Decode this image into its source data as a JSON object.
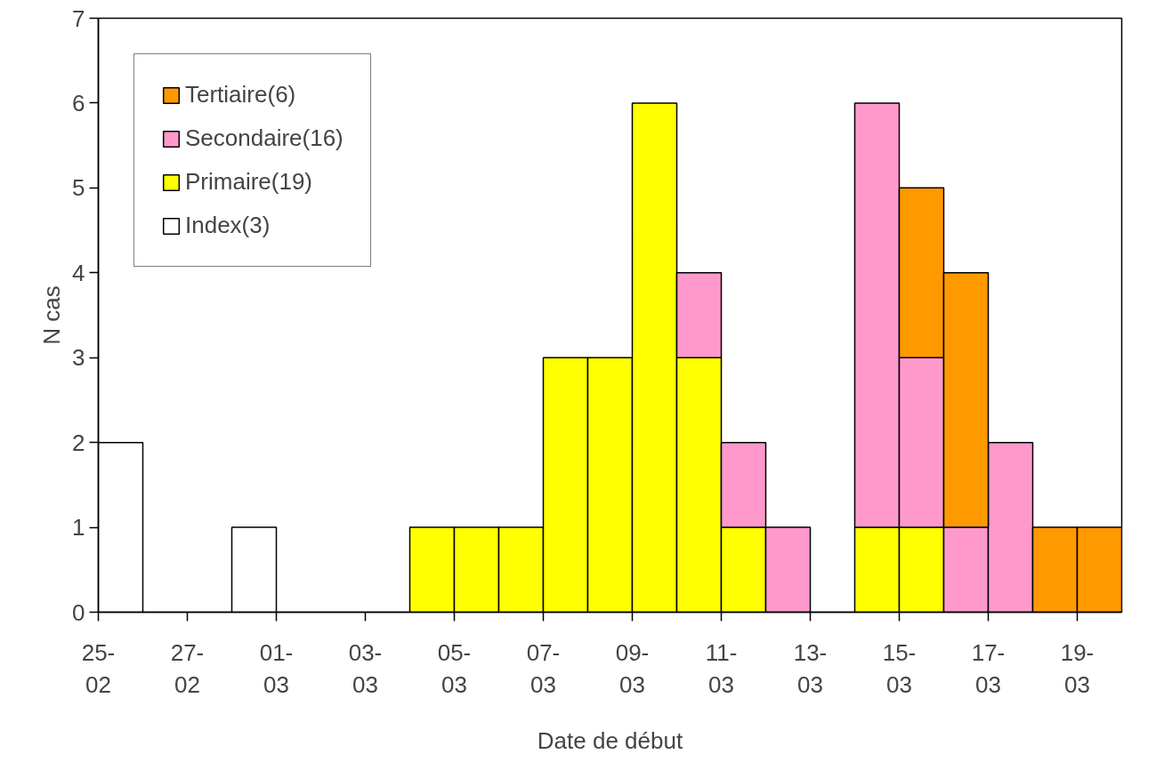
{
  "chart_data": {
    "type": "bar",
    "stacked": true,
    "xlabel": "Date de début",
    "ylabel": "N cas",
    "categories": [
      "25-02",
      null,
      "27-02",
      null,
      "01-03",
      null,
      "03-03",
      null,
      "05-03",
      null,
      "07-03",
      null,
      "09-03",
      null,
      "11-03",
      null,
      "13-03",
      null,
      "15-03",
      null,
      "17-03",
      null,
      "19-03"
    ],
    "series": [
      {
        "name": "Index(3)",
        "color": "#ffffff",
        "values": [
          2,
          null,
          null,
          1,
          null,
          null,
          null,
          null,
          null,
          null,
          null,
          null,
          null,
          null,
          null,
          null,
          null,
          null,
          null,
          null,
          null,
          null,
          null
        ]
      },
      {
        "name": "Primaire(19)",
        "color": "#ffff00",
        "values": [
          null,
          null,
          null,
          null,
          null,
          null,
          null,
          1,
          1,
          1,
          3,
          3,
          6,
          3,
          1,
          null,
          null,
          1,
          1,
          null,
          null,
          null,
          null
        ]
      },
      {
        "name": "Secondaire(16)",
        "color": "#ff99cc",
        "values": [
          null,
          null,
          null,
          null,
          null,
          null,
          null,
          null,
          null,
          null,
          null,
          null,
          null,
          1,
          1,
          1,
          null,
          5,
          2,
          1,
          2,
          null,
          null
        ]
      },
      {
        "name": "Tertiaire(6)",
        "color": "#ff9900",
        "values": [
          null,
          null,
          null,
          null,
          null,
          null,
          null,
          null,
          null,
          null,
          null,
          null,
          null,
          null,
          null,
          null,
          null,
          null,
          2,
          3,
          null,
          1,
          1
        ]
      }
    ],
    "ylim": [
      0,
      7
    ],
    "yticks": [
      0,
      1,
      2,
      3,
      4,
      5,
      6,
      7
    ],
    "grid": false,
    "legend": "top left"
  }
}
